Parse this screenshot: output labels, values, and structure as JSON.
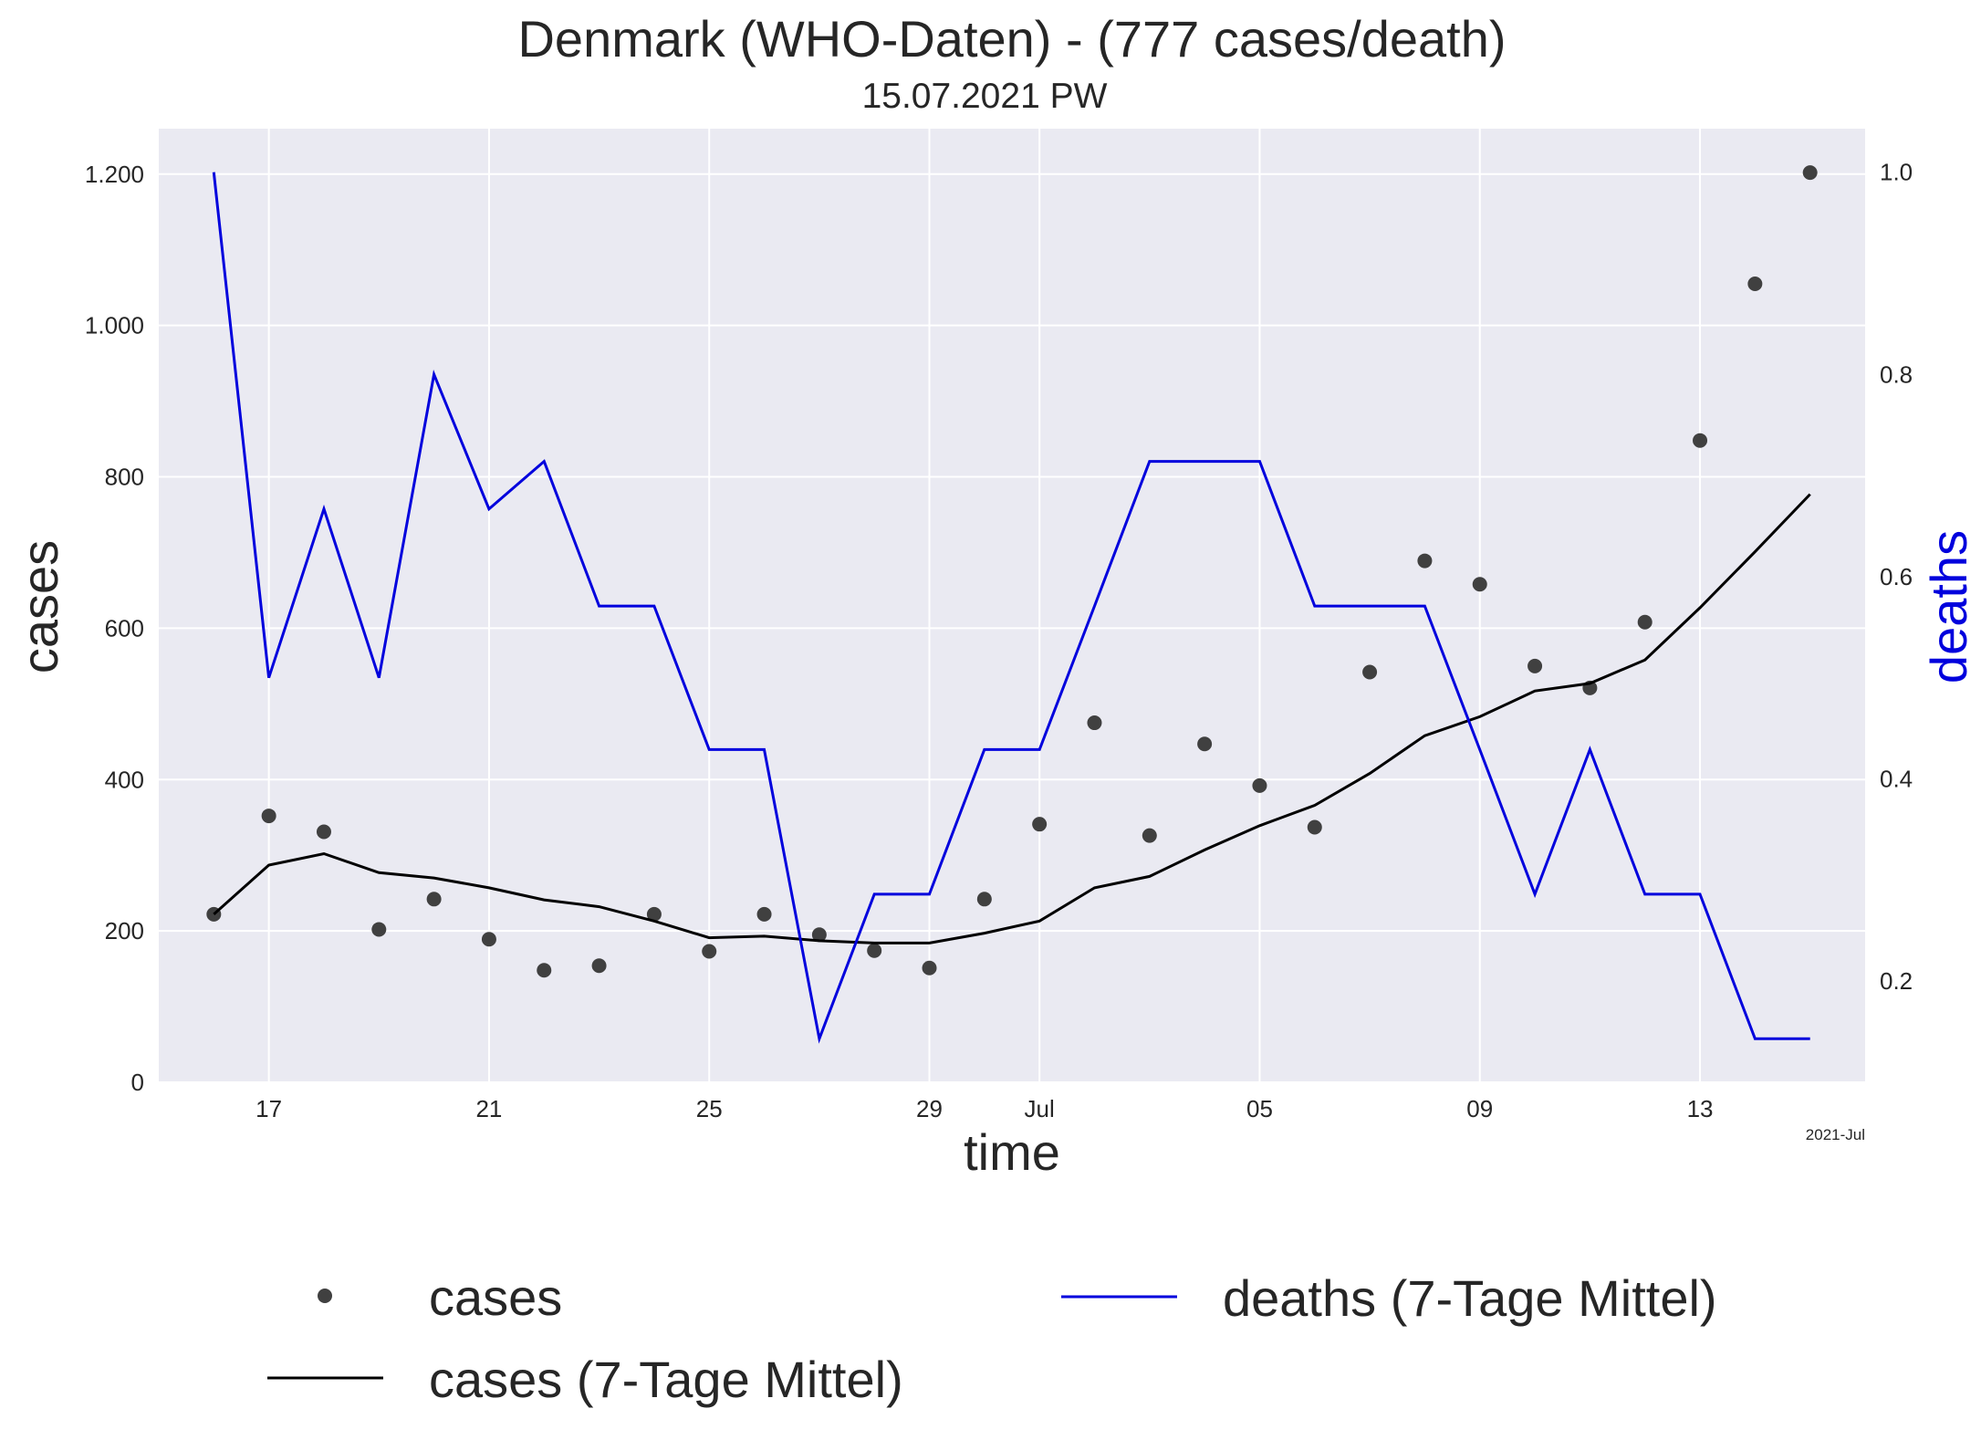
{
  "chart_data": {
    "type": "line",
    "title": "Denmark (WHO-Daten) - (777 cases/death)",
    "subtitle": "15.07.2021 PW",
    "xlabel": "time",
    "ylabel_left": "cases",
    "ylabel_right": "deaths",
    "x_axis_offset_label": "2021-Jul",
    "x": [
      "2021-06-16",
      "2021-06-17",
      "2021-06-18",
      "2021-06-19",
      "2021-06-20",
      "2021-06-21",
      "2021-06-22",
      "2021-06-23",
      "2021-06-24",
      "2021-06-25",
      "2021-06-26",
      "2021-06-27",
      "2021-06-28",
      "2021-06-29",
      "2021-06-30",
      "2021-07-01",
      "2021-07-02",
      "2021-07-03",
      "2021-07-04",
      "2021-07-05",
      "2021-07-06",
      "2021-07-07",
      "2021-07-08",
      "2021-07-09",
      "2021-07-10",
      "2021-07-11",
      "2021-07-12",
      "2021-07-13",
      "2021-07-14",
      "2021-07-15"
    ],
    "x_ticks": [
      {
        "date": "2021-06-17",
        "label": "17"
      },
      {
        "date": "2021-06-21",
        "label": "21"
      },
      {
        "date": "2021-06-25",
        "label": "25"
      },
      {
        "date": "2021-06-29",
        "label": "29"
      },
      {
        "date": "2021-07-01",
        "label": "Jul"
      },
      {
        "date": "2021-07-05",
        "label": "05"
      },
      {
        "date": "2021-07-09",
        "label": "09"
      },
      {
        "date": "2021-07-13",
        "label": "13"
      }
    ],
    "xlim": [
      "2021-06-15",
      "2021-07-16"
    ],
    "y_left": {
      "lim": [
        0,
        1260
      ],
      "ticks": [
        0,
        200,
        400,
        600,
        800,
        1000,
        1200
      ],
      "tick_labels": [
        "0",
        "200",
        "400",
        "600",
        "800",
        "1.000",
        "1.200"
      ]
    },
    "y_right": {
      "lim": [
        0.1,
        1.043
      ],
      "ticks": [
        0.2,
        0.4,
        0.6,
        0.8,
        1.0
      ],
      "tick_labels": [
        "0.2",
        "0.4",
        "0.6",
        "0.8",
        "1.0"
      ]
    },
    "grid": true,
    "legend_position": "bottom",
    "series": [
      {
        "name": "cases",
        "kind": "scatter",
        "axis": "left",
        "color": "#404040",
        "values": [
          222,
          352,
          331,
          202,
          242,
          189,
          148,
          154,
          222,
          173,
          222,
          195,
          174,
          151,
          242,
          341,
          475,
          326,
          447,
          392,
          337,
          542,
          689,
          658,
          550,
          521,
          608,
          848,
          1055,
          1202
        ]
      },
      {
        "name": "cases (7-Tage Mittel)",
        "kind": "line",
        "axis": "left",
        "color": "#000000",
        "values": [
          222,
          287,
          302,
          277,
          270,
          257,
          241,
          232,
          213,
          191,
          193,
          187,
          184,
          184,
          197,
          213,
          257,
          272,
          307,
          339,
          366,
          408,
          458,
          483,
          517,
          527,
          558,
          627,
          701,
          777
        ]
      },
      {
        "name": "deaths (7-Tage Mittel)",
        "kind": "line",
        "axis": "right",
        "color": "#0000dd",
        "values": [
          1.0,
          0.5,
          0.667,
          0.5,
          0.8,
          0.667,
          0.714,
          0.571,
          0.571,
          0.429,
          0.429,
          0.143,
          0.286,
          0.286,
          0.429,
          0.429,
          0.571,
          0.714,
          0.714,
          0.714,
          0.571,
          0.571,
          0.571,
          0.429,
          0.286,
          0.429,
          0.286,
          0.286,
          0.143,
          0.143
        ]
      }
    ]
  }
}
